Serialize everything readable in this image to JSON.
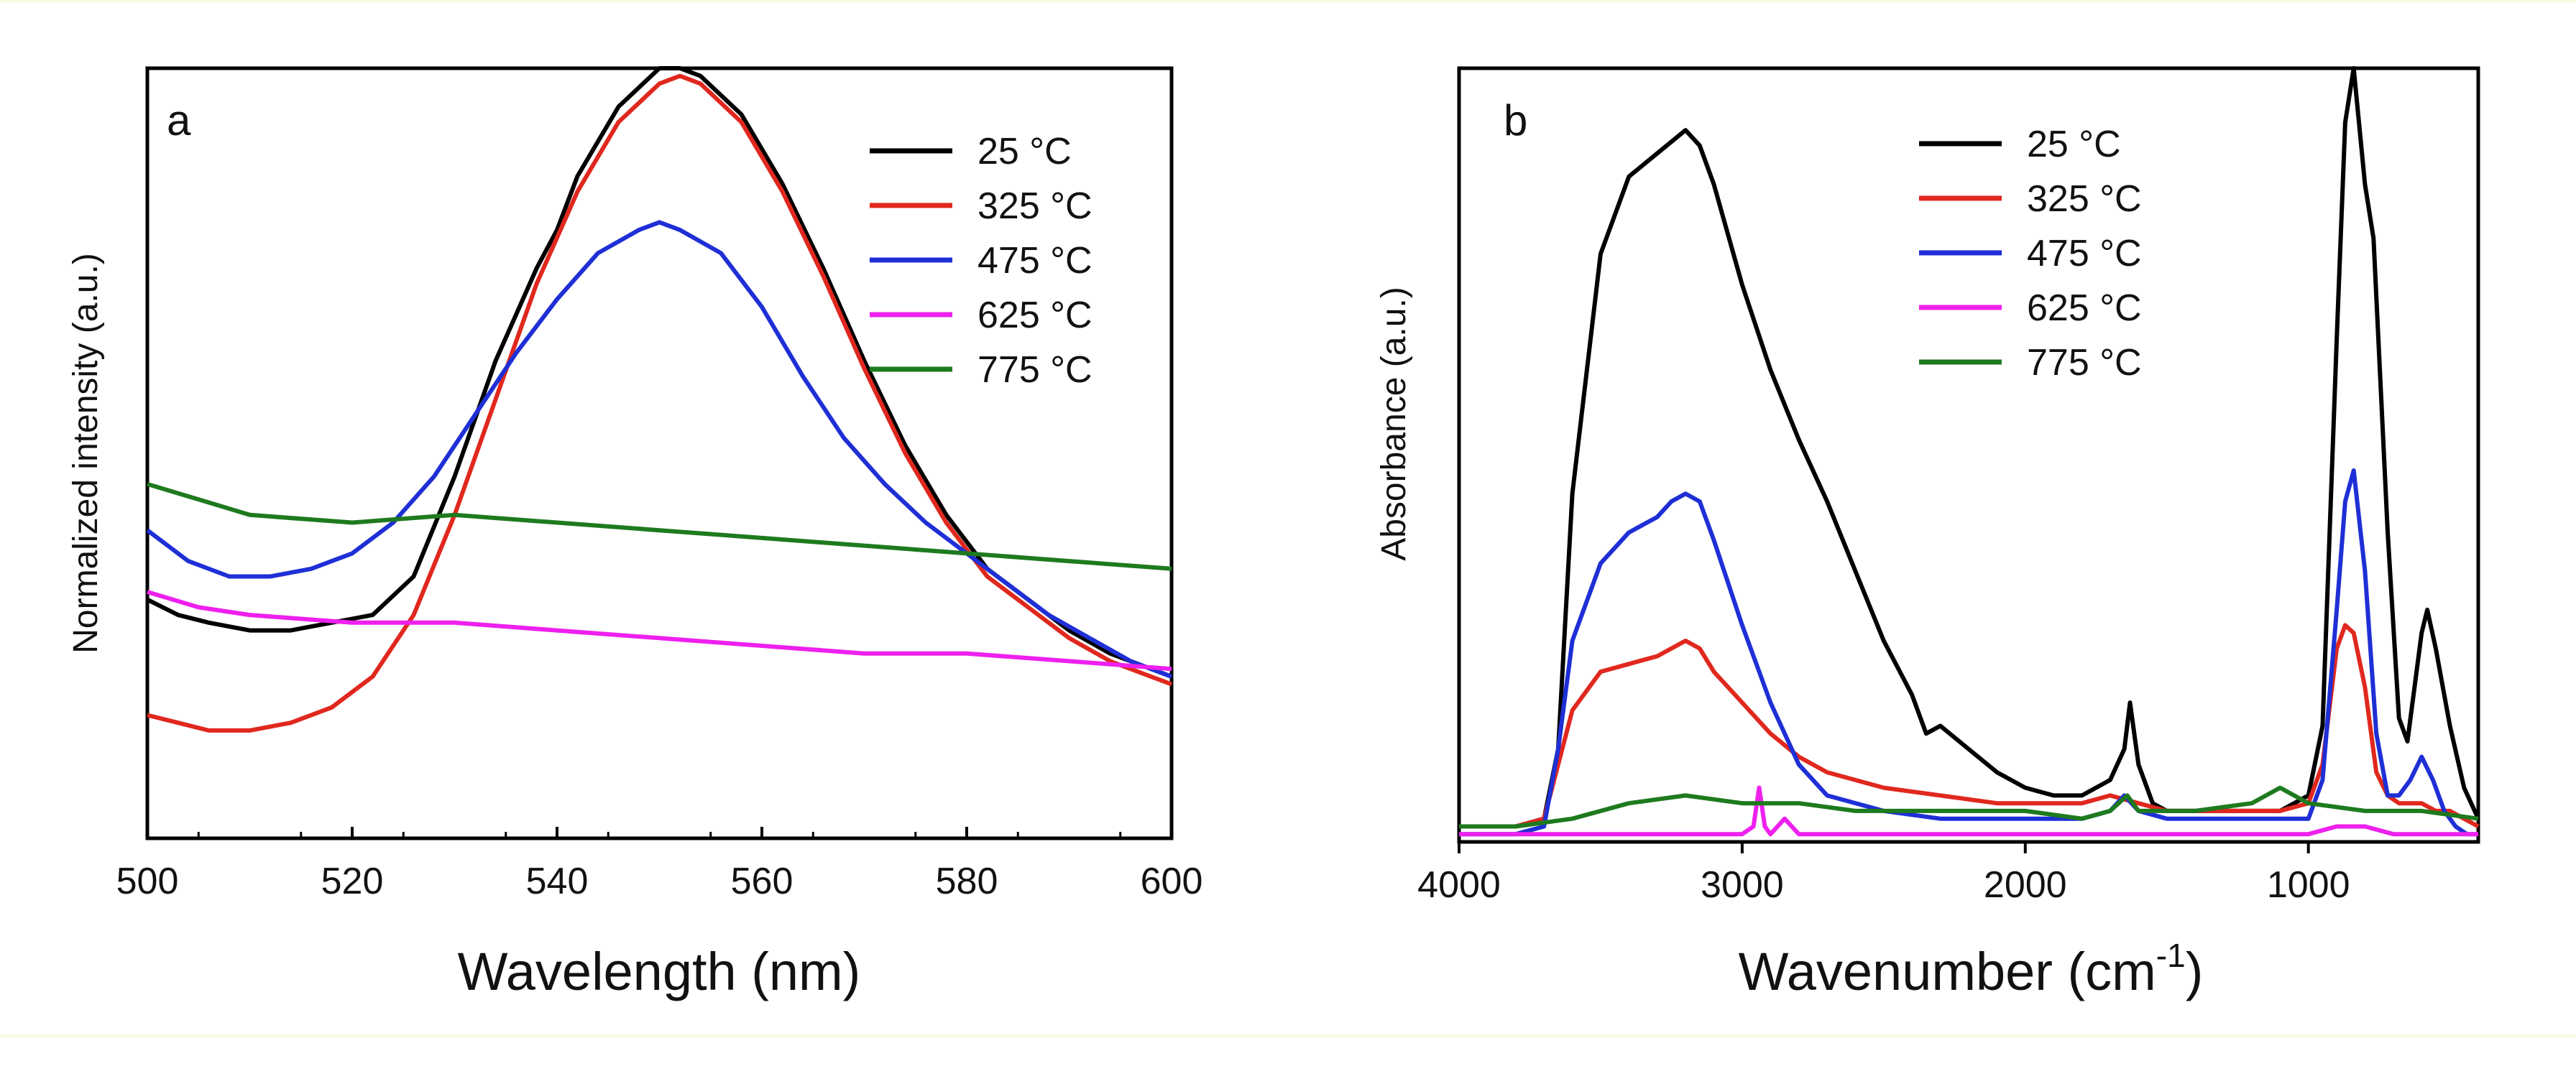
{
  "chart_data": [
    {
      "panel": "a",
      "type": "line",
      "xlabel": "Wavelength (nm)",
      "ylabel": "Normalized intensity (a.u.)",
      "xlim": [
        500,
        600
      ],
      "ylim": [
        0,
        1
      ],
      "xticks": [
        500,
        520,
        540,
        560,
        580,
        600
      ],
      "tick_labels": [
        "500",
        "520",
        "540",
        "560",
        "580",
        "600"
      ],
      "legend_position": "top-right",
      "series": [
        {
          "name": "25 °C",
          "color": "#000000",
          "x": [
            500,
            503,
            506,
            510,
            514,
            518,
            522,
            526,
            530,
            534,
            538,
            540,
            542,
            546,
            550,
            552,
            554,
            558,
            562,
            566,
            570,
            574,
            578,
            582,
            586,
            590,
            594,
            598,
            600
          ],
          "y": [
            0.31,
            0.29,
            0.28,
            0.27,
            0.27,
            0.28,
            0.29,
            0.34,
            0.47,
            0.62,
            0.74,
            0.79,
            0.86,
            0.95,
            1.0,
            1.0,
            0.99,
            0.94,
            0.85,
            0.74,
            0.62,
            0.51,
            0.42,
            0.35,
            0.31,
            0.27,
            0.24,
            0.22,
            0.21
          ]
        },
        {
          "name": "325 °C",
          "color": "#e0281e",
          "x": [
            500,
            503,
            506,
            510,
            514,
            518,
            522,
            526,
            530,
            534,
            538,
            542,
            546,
            550,
            552,
            554,
            558,
            562,
            566,
            570,
            574,
            578,
            582,
            586,
            590,
            594,
            598,
            600
          ],
          "y": [
            0.16,
            0.15,
            0.14,
            0.14,
            0.15,
            0.17,
            0.21,
            0.29,
            0.42,
            0.57,
            0.72,
            0.84,
            0.93,
            0.98,
            0.99,
            0.98,
            0.93,
            0.84,
            0.73,
            0.61,
            0.5,
            0.41,
            0.34,
            0.3,
            0.26,
            0.23,
            0.21,
            0.2
          ]
        },
        {
          "name": "475 °C",
          "color": "#1f2fd6",
          "x": [
            500,
            504,
            508,
            512,
            516,
            520,
            524,
            528,
            532,
            536,
            540,
            544,
            548,
            550,
            552,
            556,
            560,
            564,
            568,
            572,
            576,
            580,
            584,
            588,
            592,
            596,
            600
          ],
          "y": [
            0.4,
            0.36,
            0.34,
            0.34,
            0.35,
            0.37,
            0.41,
            0.47,
            0.55,
            0.63,
            0.7,
            0.76,
            0.79,
            0.8,
            0.79,
            0.76,
            0.69,
            0.6,
            0.52,
            0.46,
            0.41,
            0.37,
            0.33,
            0.29,
            0.26,
            0.23,
            0.21
          ]
        },
        {
          "name": "625 °C",
          "color": "#ee20ee",
          "x": [
            500,
            505,
            510,
            520,
            530,
            540,
            550,
            560,
            570,
            580,
            590,
            600
          ],
          "y": [
            0.32,
            0.3,
            0.29,
            0.28,
            0.28,
            0.27,
            0.26,
            0.25,
            0.24,
            0.24,
            0.23,
            0.22
          ]
        },
        {
          "name": "775 °C",
          "color": "#1e7a1e",
          "x": [
            500,
            505,
            510,
            520,
            530,
            540,
            550,
            560,
            570,
            580,
            590,
            600
          ],
          "y": [
            0.46,
            0.44,
            0.42,
            0.41,
            0.42,
            0.41,
            0.4,
            0.39,
            0.38,
            0.37,
            0.36,
            0.35
          ]
        }
      ]
    },
    {
      "panel": "b",
      "type": "line",
      "xlabel": "Wavenumber (cm",
      "xlabel_superscript": "-1",
      "xlabel_close": ")",
      "ylabel": "Absorbance (a.u.)",
      "xlim": [
        4000,
        400
      ],
      "ylim": [
        0,
        1
      ],
      "xticks": [
        4000,
        3000,
        2000,
        1000
      ],
      "tick_labels": [
        "4000",
        "3000",
        "2000",
        "1000"
      ],
      "legend_position": "top-left",
      "series": [
        {
          "name": "25 °C",
          "color": "#000000",
          "x": [
            4000,
            3800,
            3700,
            3650,
            3600,
            3500,
            3400,
            3300,
            3200,
            3150,
            3100,
            3000,
            2900,
            2800,
            2700,
            2600,
            2500,
            2400,
            2350,
            2300,
            2200,
            2100,
            2000,
            1900,
            1800,
            1700,
            1650,
            1630,
            1600,
            1550,
            1500,
            1400,
            1300,
            1200,
            1100,
            1000,
            950,
            900,
            870,
            840,
            800,
            770,
            720,
            680,
            650,
            600,
            580,
            550,
            500,
            450,
            400
          ],
          "y": [
            0.02,
            0.02,
            0.03,
            0.12,
            0.45,
            0.76,
            0.86,
            0.89,
            0.92,
            0.9,
            0.85,
            0.72,
            0.61,
            0.52,
            0.44,
            0.35,
            0.26,
            0.19,
            0.14,
            0.15,
            0.12,
            0.09,
            0.07,
            0.06,
            0.06,
            0.08,
            0.12,
            0.18,
            0.1,
            0.05,
            0.04,
            0.04,
            0.04,
            0.04,
            0.04,
            0.06,
            0.15,
            0.65,
            0.93,
            1.0,
            0.85,
            0.78,
            0.4,
            0.16,
            0.13,
            0.27,
            0.3,
            0.25,
            0.15,
            0.07,
            0.03
          ]
        },
        {
          "name": "325 °C",
          "color": "#e0281e",
          "x": [
            4000,
            3800,
            3700,
            3650,
            3600,
            3500,
            3400,
            3300,
            3250,
            3200,
            3150,
            3100,
            3000,
            2900,
            2800,
            2700,
            2500,
            2300,
            2100,
            1900,
            1800,
            1700,
            1600,
            1500,
            1300,
            1100,
            1000,
            950,
            900,
            870,
            840,
            800,
            760,
            720,
            680,
            650,
            600,
            550,
            500,
            450,
            400
          ],
          "y": [
            0.02,
            0.02,
            0.03,
            0.1,
            0.17,
            0.22,
            0.23,
            0.24,
            0.25,
            0.26,
            0.25,
            0.22,
            0.18,
            0.14,
            0.11,
            0.09,
            0.07,
            0.06,
            0.05,
            0.05,
            0.05,
            0.06,
            0.05,
            0.04,
            0.04,
            0.04,
            0.05,
            0.1,
            0.25,
            0.28,
            0.27,
            0.2,
            0.09,
            0.06,
            0.05,
            0.05,
            0.05,
            0.04,
            0.04,
            0.03,
            0.02
          ]
        },
        {
          "name": "475 °C",
          "color": "#1f2fd6",
          "x": [
            4000,
            3800,
            3700,
            3650,
            3600,
            3500,
            3400,
            3300,
            3250,
            3200,
            3150,
            3100,
            3000,
            2900,
            2800,
            2700,
            2500,
            2300,
            2100,
            1900,
            1800,
            1700,
            1650,
            1600,
            1500,
            1300,
            1100,
            1000,
            950,
            900,
            870,
            840,
            800,
            760,
            720,
            680,
            640,
            600,
            560,
            520,
            480,
            440,
            400
          ],
          "y": [
            0.01,
            0.01,
            0.02,
            0.12,
            0.26,
            0.36,
            0.4,
            0.42,
            0.44,
            0.45,
            0.44,
            0.39,
            0.28,
            0.18,
            0.1,
            0.06,
            0.04,
            0.03,
            0.03,
            0.03,
            0.03,
            0.04,
            0.06,
            0.04,
            0.03,
            0.03,
            0.03,
            0.03,
            0.08,
            0.3,
            0.44,
            0.48,
            0.35,
            0.14,
            0.06,
            0.06,
            0.08,
            0.11,
            0.08,
            0.04,
            0.02,
            0.01,
            0.01
          ]
        },
        {
          "name": "625 °C",
          "color": "#ee20ee",
          "x": [
            4000,
            3600,
            3300,
            3000,
            2960,
            2940,
            2920,
            2900,
            2850,
            2800,
            2500,
            2000,
            1500,
            1000,
            900,
            800,
            700,
            600,
            500,
            400
          ],
          "y": [
            0.01,
            0.01,
            0.01,
            0.01,
            0.02,
            0.07,
            0.02,
            0.01,
            0.03,
            0.01,
            0.01,
            0.01,
            0.01,
            0.01,
            0.02,
            0.02,
            0.01,
            0.01,
            0.01,
            0.01
          ]
        },
        {
          "name": "775 °C",
          "color": "#1e7a1e",
          "x": [
            4000,
            3800,
            3600,
            3400,
            3200,
            3000,
            2800,
            2600,
            2400,
            2200,
            2000,
            1800,
            1700,
            1640,
            1600,
            1400,
            1200,
            1100,
            1000,
            800,
            600,
            400
          ],
          "y": [
            0.02,
            0.02,
            0.03,
            0.05,
            0.06,
            0.05,
            0.05,
            0.04,
            0.04,
            0.04,
            0.04,
            0.03,
            0.04,
            0.06,
            0.04,
            0.04,
            0.05,
            0.07,
            0.05,
            0.04,
            0.04,
            0.03
          ]
        }
      ]
    }
  ]
}
